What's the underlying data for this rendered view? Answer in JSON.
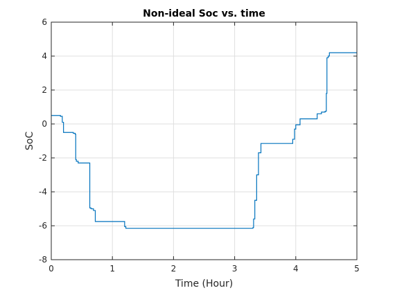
{
  "chart_data": {
    "type": "line",
    "title": "Non-ideal Soc vs. time",
    "xlabel": "Time (Hour)",
    "ylabel": "SoC",
    "xlim": [
      0,
      5
    ],
    "ylim": [
      -8,
      6
    ],
    "xticks": [
      0,
      1,
      2,
      3,
      4,
      5
    ],
    "yticks": [
      -8,
      -6,
      -4,
      -2,
      0,
      2,
      4,
      6
    ],
    "grid": true,
    "series": [
      {
        "color": "#0072bd",
        "x": [
          0,
          0.15,
          0.15,
          0.18,
          0.18,
          0.2,
          0.2,
          0.36,
          0.36,
          0.39,
          0.39,
          0.4,
          0.4,
          0.41,
          0.41,
          0.44,
          0.44,
          0.63,
          0.63,
          0.65,
          0.65,
          0.69,
          0.69,
          0.72,
          0.72,
          0.75,
          0.75,
          1.2,
          1.2,
          1.22,
          1.22,
          3.3,
          3.3,
          3.31,
          3.31,
          3.33,
          3.33,
          3.36,
          3.36,
          3.39,
          3.39,
          3.43,
          3.43,
          3.47,
          3.47,
          3.95,
          3.95,
          3.98,
          3.98,
          4.0,
          4.0,
          4.07,
          4.07,
          4.35,
          4.35,
          4.42,
          4.42,
          4.48,
          4.48,
          4.5,
          4.5,
          4.51,
          4.51,
          4.53,
          4.53,
          4.55,
          4.55,
          5.0
        ],
        "y": [
          0.5,
          0.5,
          0.45,
          0.45,
          0.1,
          0.1,
          -0.5,
          -0.5,
          -0.55,
          -0.55,
          -0.6,
          -0.6,
          -2.1,
          -2.1,
          -2.2,
          -2.2,
          -2.3,
          -2.3,
          -4.95,
          -4.95,
          -5.0,
          -5.0,
          -5.1,
          -5.1,
          -5.75,
          -5.75,
          -5.75,
          -5.75,
          -6.05,
          -6.05,
          -6.15,
          -6.15,
          -6.1,
          -6.1,
          -5.6,
          -5.6,
          -4.5,
          -4.5,
          -3.0,
          -3.0,
          -1.7,
          -1.7,
          -1.15,
          -1.15,
          -1.15,
          -1.15,
          -0.9,
          -0.9,
          -0.3,
          -0.3,
          -0.05,
          -0.05,
          0.3,
          0.3,
          0.6,
          0.6,
          0.7,
          0.7,
          0.75,
          0.75,
          1.8,
          1.8,
          3.9,
          3.9,
          4.0,
          4.0,
          4.2,
          4.2
        ]
      }
    ]
  }
}
